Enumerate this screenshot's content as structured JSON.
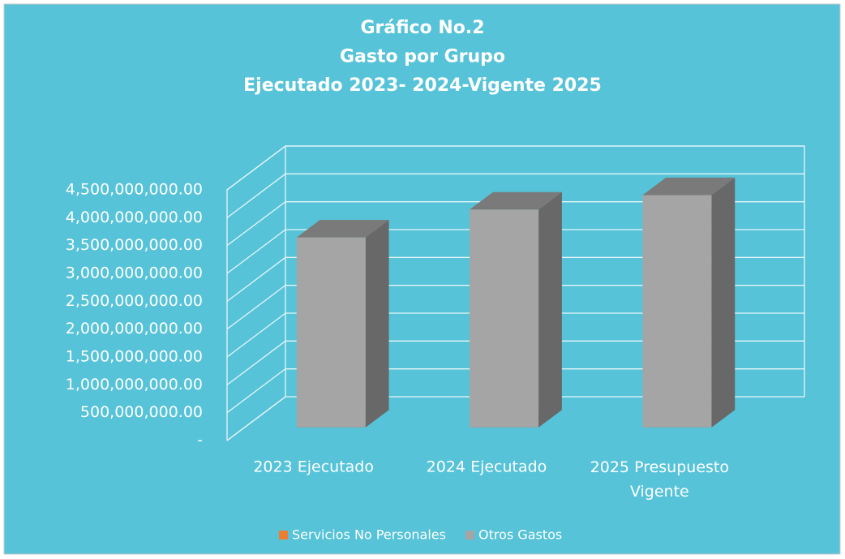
{
  "chart_data": {
    "type": "bar3d",
    "title": [
      "Gráfico No.2",
      "Gasto por Grupo",
      "Ejecutado 2023- 2024-Vigente 2025"
    ],
    "categories": [
      "2023 Ejecutado",
      "2024 Ejecutado",
      "2025 Presupuesto Vigente"
    ],
    "series": [
      {
        "name": "Servicios No Personales",
        "color": "#ED7D31",
        "values": [
          0,
          0,
          0
        ]
      },
      {
        "name": "Otros Gastos",
        "color": "#A5A5A5",
        "values": [
          3410000000,
          3910000000,
          4170000000
        ]
      }
    ],
    "ylim": [
      0,
      4500000000
    ],
    "yticks": [
      {
        "value": 0,
        "label": "-"
      },
      {
        "value": 500000000,
        "label": "500,000,000.00"
      },
      {
        "value": 1000000000,
        "label": "1,000,000,000.00"
      },
      {
        "value": 1500000000,
        "label": "1,500,000,000.00"
      },
      {
        "value": 2000000000,
        "label": "2,000,000,000.00"
      },
      {
        "value": 2500000000,
        "label": "2,500,000,000.00"
      },
      {
        "value": 3000000000,
        "label": "3,000,000,000.00"
      },
      {
        "value": 3500000000,
        "label": "3,500,000,000.00"
      },
      {
        "value": 4000000000,
        "label": "4,000,000,000.00"
      },
      {
        "value": 4500000000,
        "label": "4,500,000,000.00"
      }
    ],
    "grid": true,
    "legend": "bottom"
  }
}
